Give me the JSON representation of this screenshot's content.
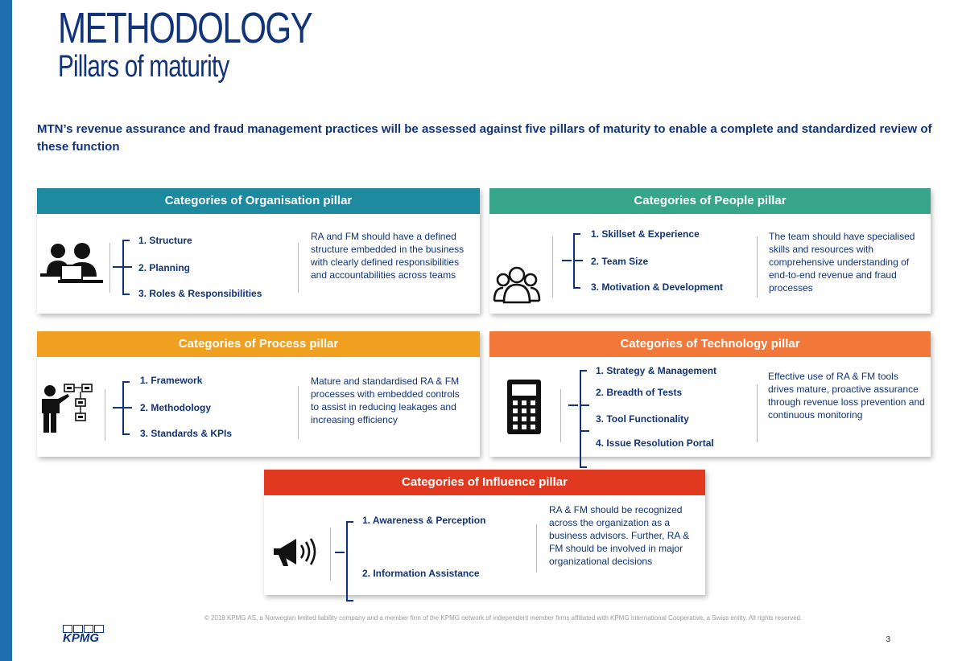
{
  "title": {
    "line1": "METHODOLOGY",
    "line2": "Pillars of maturity"
  },
  "intro": "MTN’s revenue assurance and fraud management practices will be assessed against five pillars of maturity to enable a complete and standardized review of these function",
  "colors": {
    "organisation": "#1e8aa0",
    "people": "#37a58a",
    "process": "#f0a020",
    "technology": "#f2783a",
    "influence": "#e0391f",
    "text": "#10337a"
  },
  "pillars": {
    "organisation": {
      "header": "Categories of Organisation pillar",
      "icon": "people-at-desks-icon",
      "items": [
        "1. Structure",
        "2. Planning",
        "3. Roles & Responsibilities"
      ],
      "description": "RA and FM should have a defined structure embedded in the business with clearly defined responsibilities and accountabilities across teams"
    },
    "people": {
      "header": "Categories of People pillar",
      "icon": "group-outline-icon",
      "items": [
        "1. Skillset & Experience",
        "2. Team Size",
        "3. Motivation & Development"
      ],
      "description": "The team should have specialised skills and resources with comprehensive understanding of end-to-end revenue and fraud processes"
    },
    "process": {
      "header": "Categories of Process pillar",
      "icon": "presenter-flowchart-icon",
      "items": [
        "1. Framework",
        "2. Methodology",
        "3. Standards & KPIs"
      ],
      "description": "Mature and standardised RA & FM processes with embedded controls to assist in reducing leakages and increasing efficiency"
    },
    "technology": {
      "header": "Categories of Technology pillar",
      "icon": "calculator-icon",
      "items": [
        "1. Strategy & Management",
        "2. Breadth of Tests",
        "3. Tool Functionality",
        "4. Issue Resolution Portal"
      ],
      "description": "Effective use of RA & FM  tools drives mature, proactive assurance through revenue loss prevention and continuous monitoring"
    },
    "influence": {
      "header": "Categories of Influence pillar",
      "icon": "megaphone-icon",
      "items": [
        "1. Awareness & Perception",
        "2. Information Assistance"
      ],
      "description": "RA & FM should be recognized across the organization as a business advisors. Further, RA & FM should be involved in major organizational decisions"
    }
  },
  "footer": "© 2018 KPMG AS, a Norwegian limited liability company and a member firm of the KPMG network of independent member firms affiliated with KPMG International Cooperative, a Swiss entity. All rights reserved.",
  "logo_text": "KPMG",
  "page_number": "3"
}
